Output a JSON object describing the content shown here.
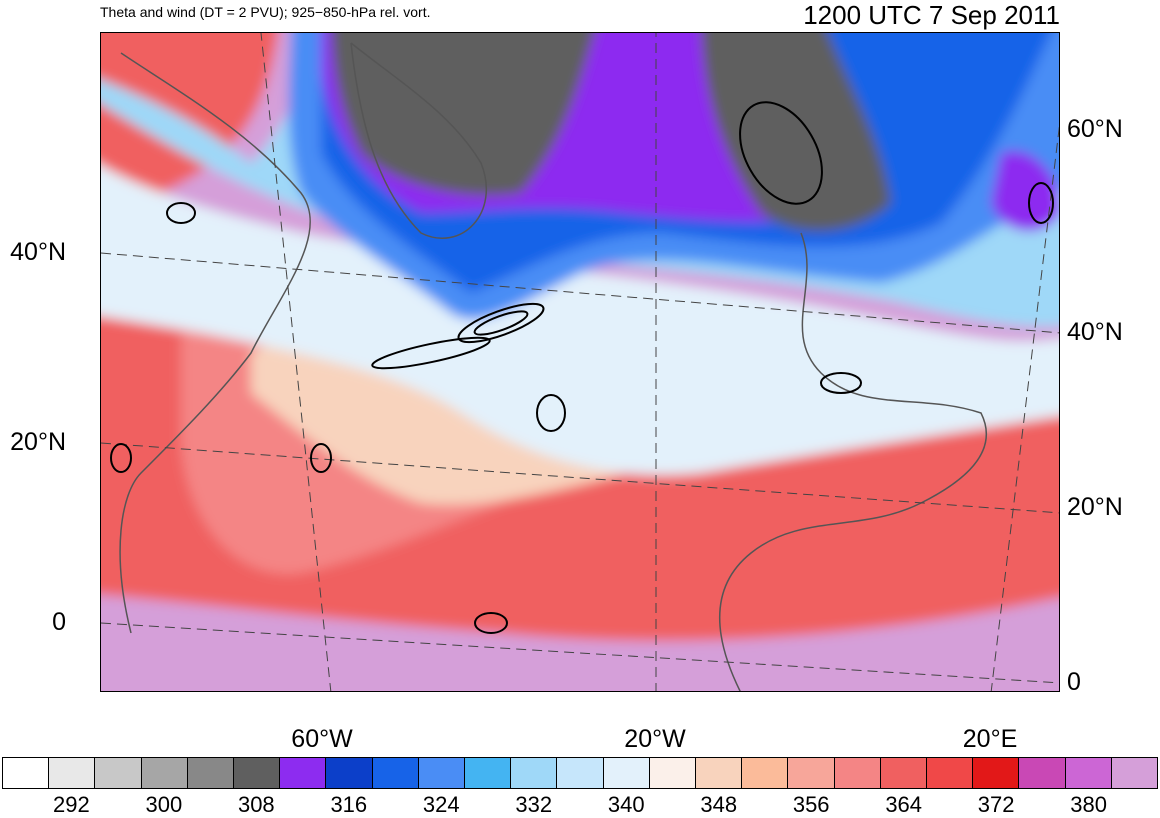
{
  "header": {
    "title_left": "Theta and wind (DT = 2 PVU); 925−850-hPa rel. vort.",
    "title_right": "1200 UTC 7 Sep 2011"
  },
  "axes": {
    "left_lat_labels": [
      "40°N",
      "20°N",
      "0"
    ],
    "right_lat_labels": [
      "60°N",
      "40°N",
      "20°N",
      "0"
    ],
    "bottom_lon_labels": [
      "60°W",
      "20°W",
      "20°E"
    ]
  },
  "colorbar": {
    "colors": [
      "#ffffff",
      "#e8e8e8",
      "#c8c8c8",
      "#a6a6a6",
      "#888888",
      "#5f5f5f",
      "#8d2cf0",
      "#0c3fc9",
      "#1763e8",
      "#4a8df5",
      "#44b4f2",
      "#9fd8f8",
      "#c6e6fb",
      "#e3f1fb",
      "#fbf0ea",
      "#f8d3bd",
      "#fbbb9a",
      "#f7a69a",
      "#f48585",
      "#f06060",
      "#f04848",
      "#e21818",
      "#c948b5",
      "#cc66d5",
      "#d59fd9"
    ],
    "tick_labels": [
      "292",
      "300",
      "308",
      "316",
      "324",
      "332",
      "340",
      "348",
      "356",
      "364",
      "372",
      "380"
    ],
    "tick_values": [
      292,
      300,
      308,
      316,
      324,
      332,
      340,
      348,
      356,
      364,
      372,
      380
    ],
    "min": 286,
    "max": 386,
    "step": 4
  },
  "map": {
    "land_color": "#555555",
    "vorticity_contour_color": "#000000",
    "theta_layers": [
      {
        "color": "#d59fd9"
      },
      {
        "color": "#f06060"
      },
      {
        "color": "#f48585"
      },
      {
        "color": "#f8d3bd"
      },
      {
        "color": "#e3f1fb"
      },
      {
        "color": "#9fd8f8"
      },
      {
        "color": "#4a8df5"
      },
      {
        "color": "#1763e8"
      },
      {
        "color": "#8d2cf0"
      },
      {
        "color": "#5f5f5f"
      }
    ]
  }
}
